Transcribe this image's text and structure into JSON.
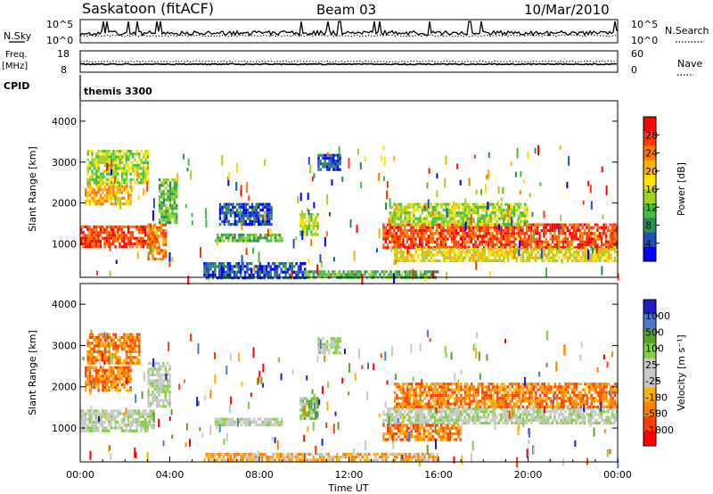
{
  "header": {
    "station": "Saskatoon (fitACF)",
    "beam": "Beam 03",
    "date": "10/Mar/2010"
  },
  "noise_panel": {
    "left_label": "N.Sky",
    "right_label": "N.Search",
    "left_ticks": [
      "10^5",
      "10^0"
    ],
    "right_ticks": [
      "10^5",
      "10^0"
    ]
  },
  "freq_panel": {
    "label_line1": "Freq.",
    "label_line2": "[MHz]",
    "right_label": "Nave",
    "left_ticks": [
      "18",
      "8"
    ],
    "right_ticks": [
      "60",
      "0"
    ]
  },
  "cpid": {
    "label": "CPID",
    "value": "themis 3300"
  },
  "chart_data": [
    {
      "type": "heatmap",
      "name": "power",
      "ylabel": "Slant Range [km]",
      "xlabel": "",
      "y_ticks": [
        "4000",
        "3000",
        "2000",
        "1000"
      ],
      "ylim": [
        180,
        4500
      ],
      "xlim_hours": [
        0,
        24
      ],
      "colorbar": {
        "label": "Power [dB]",
        "ticks": [
          "28",
          "24",
          "20",
          "16",
          "12",
          "8",
          "4"
        ],
        "colors": [
          "#ff0000",
          "#ff3a00",
          "#ff7a00",
          "#ffb000",
          "#ffe000",
          "#a0d020",
          "#40c040",
          "#2e8b57",
          "#2050c0",
          "#0000ff"
        ]
      },
      "bands": [
        {
          "t0": 0.0,
          "t1": 3.3,
          "r0": 950,
          "r1": 1450,
          "level": 8
        },
        {
          "t0": 0.2,
          "t1": 2.3,
          "r0": 2000,
          "r1": 2500,
          "level": 6
        },
        {
          "t0": 0.3,
          "t1": 3.0,
          "r0": 2500,
          "r1": 3300,
          "level": 4
        },
        {
          "t0": 3.0,
          "t1": 3.8,
          "r0": 600,
          "r1": 1500,
          "level": 7
        },
        {
          "t0": 3.5,
          "t1": 4.3,
          "r0": 1500,
          "r1": 2600,
          "level": 3
        },
        {
          "t0": 6.0,
          "t1": 9.0,
          "r0": 1050,
          "r1": 1250,
          "level": 3
        },
        {
          "t0": 6.2,
          "t1": 8.5,
          "r0": 1500,
          "r1": 2000,
          "level": 1
        },
        {
          "t0": 9.8,
          "t1": 10.6,
          "r0": 1200,
          "r1": 1750,
          "level": 4
        },
        {
          "t0": 10.6,
          "t1": 11.6,
          "r0": 2800,
          "r1": 3200,
          "level": 1
        },
        {
          "t0": 13.5,
          "t1": 24.0,
          "r0": 900,
          "r1": 1500,
          "level": 8
        },
        {
          "t0": 13.8,
          "t1": 20.0,
          "r0": 1500,
          "r1": 2000,
          "level": 4
        },
        {
          "t0": 14.0,
          "t1": 24.0,
          "r0": 600,
          "r1": 900,
          "level": 5
        },
        {
          "t0": 5.5,
          "t1": 10.0,
          "r0": 200,
          "r1": 550,
          "level": 1
        },
        {
          "t0": 10.0,
          "t1": 16.0,
          "r0": 200,
          "r1": 350,
          "level": 3
        }
      ]
    },
    {
      "type": "heatmap",
      "name": "velocity",
      "ylabel": "Slant Range [km]",
      "xlabel": "Time UT",
      "y_ticks": [
        "4000",
        "3000",
        "2000",
        "1000"
      ],
      "ylim": [
        180,
        4500
      ],
      "xlim_hours": [
        0,
        24
      ],
      "x_ticks": [
        "00:00",
        "04:00",
        "08:00",
        "12:00",
        "16:00",
        "20:00",
        "00:00"
      ],
      "colorbar": {
        "label": "Velocity [m s⁻¹]",
        "ticks": [
          "1000",
          "500",
          "100",
          "25",
          "-25",
          "-100",
          "-500",
          "-1000"
        ],
        "colors": [
          "#2020c0",
          "#4a78c8",
          "#5aa030",
          "#80d040",
          "#c8c8c8",
          "#c8c8c8",
          "#ffb000",
          "#ff8000",
          "#ff4000",
          "#ff0000"
        ]
      },
      "bands": [
        {
          "t0": 0.0,
          "t1": 3.3,
          "r0": 950,
          "r1": 1450,
          "level": 4
        },
        {
          "t0": 0.2,
          "t1": 2.3,
          "r0": 1900,
          "r1": 2500,
          "level": 7
        },
        {
          "t0": 0.3,
          "t1": 2.6,
          "r0": 2600,
          "r1": 3300,
          "level": 7
        },
        {
          "t0": 3.0,
          "t1": 4.0,
          "r0": 1500,
          "r1": 2600,
          "level": 4
        },
        {
          "t0": 6.0,
          "t1": 9.0,
          "r0": 1050,
          "r1": 1250,
          "level": 4
        },
        {
          "t0": 9.8,
          "t1": 10.6,
          "r0": 1200,
          "r1": 1750,
          "level": 3
        },
        {
          "t0": 10.6,
          "t1": 11.6,
          "r0": 2800,
          "r1": 3200,
          "level": 4
        },
        {
          "t0": 13.5,
          "t1": 24.0,
          "r0": 1100,
          "r1": 1500,
          "level": 4
        },
        {
          "t0": 13.5,
          "t1": 17.0,
          "r0": 700,
          "r1": 1100,
          "level": 7
        },
        {
          "t0": 14.0,
          "t1": 24.0,
          "r0": 1500,
          "r1": 2100,
          "level": 7
        },
        {
          "t0": 5.5,
          "t1": 16.0,
          "r0": 200,
          "r1": 400,
          "level": 6
        }
      ]
    }
  ]
}
